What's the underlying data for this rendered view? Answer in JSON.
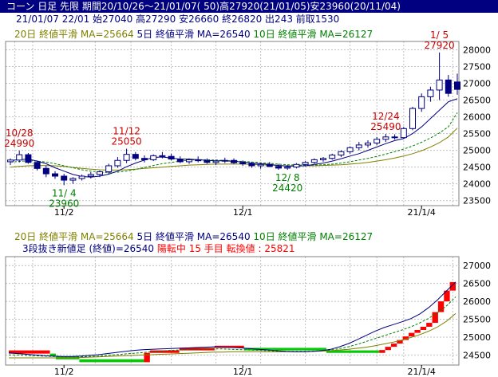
{
  "window": {
    "title": "コーン 日足 先限 期間20/10/26～21/01/07( 50)高27920(21/01/05)安23960(20/11/04)"
  },
  "info": {
    "line": "21/01/07 22/01 始27040 高27290 安26660 終26820 出243 前取1530"
  },
  "colors": {
    "ma20": "#808000",
    "ma5": "#000080",
    "ma10": "#008000",
    "up": "#ff0000",
    "down": "#000080",
    "grid": "#c0c0c0"
  },
  "legend_top": {
    "ma20": "20日 終値平滑 MA=25664",
    "ma5": "5日 終値平滑 MA=26540",
    "ma10": "10日 終値平滑 MA=26127"
  },
  "legend_bottom": {
    "ma20": "20日 終値平滑 MA=25664",
    "ma5": "5日 終値平滑 MA=26540",
    "ma10": "10日 終値平滑 MA=26127",
    "three_line": "3段抜き新値足 (終値)=26540",
    "state": "陽転中",
    "count": "15 手目",
    "reversal": "転換値 : 25821"
  },
  "chart_data": [
    {
      "type": "candlestick",
      "x_tick_labels": [
        "11/2",
        "12/1",
        "21/1/4"
      ],
      "y_tick_labels": [
        23500,
        24000,
        24500,
        25000,
        25500,
        26000,
        26500,
        27000,
        27500,
        28000
      ],
      "ylim": [
        23350,
        28250
      ],
      "annotations": [
        {
          "day": 1,
          "date": "10/28",
          "price": 24990,
          "kind": "high"
        },
        {
          "day": 6,
          "date": "11/ 4",
          "price": 23960,
          "kind": "low"
        },
        {
          "day": 13,
          "date": "11/12",
          "price": 25050,
          "kind": "high"
        },
        {
          "day": 31,
          "date": "12/ 8",
          "price": 24420,
          "kind": "low"
        },
        {
          "day": 42,
          "date": "12/24",
          "price": 25490,
          "kind": "high"
        },
        {
          "day": 48,
          "date": "1/ 5",
          "price": 27920,
          "kind": "high"
        }
      ],
      "candles": [
        [
          24660,
          24760,
          24560,
          24710
        ],
        [
          24710,
          24990,
          24640,
          24870
        ],
        [
          24870,
          24920,
          24600,
          24640
        ],
        [
          24640,
          24700,
          24400,
          24460
        ],
        [
          24460,
          24540,
          24200,
          24300
        ],
        [
          24300,
          24380,
          24150,
          24230
        ],
        [
          24230,
          24300,
          23960,
          24110
        ],
        [
          24110,
          24200,
          24000,
          24160
        ],
        [
          24160,
          24280,
          24100,
          24230
        ],
        [
          24230,
          24350,
          24160,
          24280
        ],
        [
          24280,
          24400,
          24200,
          24360
        ],
        [
          24360,
          24600,
          24300,
          24540
        ],
        [
          24540,
          24800,
          24480,
          24700
        ],
        [
          24700,
          25050,
          24620,
          24880
        ],
        [
          24880,
          24950,
          24700,
          24760
        ],
        [
          24760,
          24850,
          24640,
          24720
        ],
        [
          24720,
          24880,
          24680,
          24840
        ],
        [
          24840,
          24950,
          24760,
          24820
        ],
        [
          24820,
          24900,
          24700,
          24740
        ],
        [
          24740,
          24820,
          24620,
          24660
        ],
        [
          24660,
          24760,
          24600,
          24720
        ],
        [
          24720,
          24820,
          24640,
          24690
        ],
        [
          24690,
          24760,
          24600,
          24640
        ],
        [
          24640,
          24720,
          24560,
          24680
        ],
        [
          24680,
          24780,
          24620,
          24700
        ],
        [
          24700,
          24760,
          24600,
          24630
        ],
        [
          24630,
          24700,
          24540,
          24600
        ],
        [
          24600,
          24660,
          24480,
          24540
        ],
        [
          24540,
          24620,
          24450,
          24580
        ],
        [
          24580,
          24650,
          24500,
          24520
        ],
        [
          24520,
          24600,
          24420,
          24470
        ],
        [
          24470,
          24560,
          24420,
          24500
        ],
        [
          24500,
          24620,
          24460,
          24580
        ],
        [
          24580,
          24680,
          24520,
          24640
        ],
        [
          24640,
          24760,
          24600,
          24720
        ],
        [
          24720,
          24800,
          24660,
          24760
        ],
        [
          24760,
          24900,
          24720,
          24860
        ],
        [
          24860,
          25000,
          24800,
          24960
        ],
        [
          24960,
          25120,
          24900,
          25080
        ],
        [
          25080,
          25250,
          25000,
          25160
        ],
        [
          25160,
          25300,
          25080,
          25220
        ],
        [
          25220,
          25400,
          25150,
          25330
        ],
        [
          25330,
          25490,
          25250,
          25400
        ],
        [
          25400,
          25480,
          25320,
          25380
        ],
        [
          25380,
          25700,
          25350,
          25650
        ],
        [
          25650,
          26300,
          25600,
          26250
        ],
        [
          26250,
          26700,
          26150,
          26600
        ],
        [
          26600,
          26900,
          26450,
          26800
        ],
        [
          26800,
          27920,
          26500,
          27100
        ],
        [
          27100,
          27250,
          26600,
          26700
        ],
        [
          27040,
          27290,
          26660,
          26820
        ]
      ],
      "ma5": [
        24700,
        24720,
        24740,
        24680,
        24600,
        24480,
        24380,
        24280,
        24220,
        24200,
        24230,
        24290,
        24380,
        24510,
        24620,
        24710,
        24790,
        24800,
        24770,
        24740,
        24740,
        24720,
        24700,
        24690,
        24690,
        24670,
        24650,
        24620,
        24600,
        24580,
        24550,
        24530,
        24530,
        24540,
        24580,
        24620,
        24680,
        24750,
        24830,
        24900,
        25000,
        25100,
        25200,
        25290,
        25350,
        25500,
        25700,
        25950,
        26200,
        26450,
        26540
      ],
      "ma10": [
        24650,
        24670,
        24690,
        24680,
        24650,
        24600,
        24540,
        24480,
        24420,
        24380,
        24350,
        24340,
        24350,
        24380,
        24430,
        24490,
        24550,
        24600,
        24640,
        24680,
        24710,
        24720,
        24720,
        24710,
        24700,
        24680,
        24670,
        24650,
        24630,
        24610,
        24590,
        24570,
        24560,
        24560,
        24560,
        24570,
        24590,
        24620,
        24660,
        24710,
        24760,
        24820,
        24890,
        24960,
        25040,
        25130,
        25240,
        25370,
        25520,
        25700,
        26127
      ],
      "ma20": [
        24500,
        24520,
        24540,
        24550,
        24550,
        24540,
        24520,
        24490,
        24460,
        24440,
        24420,
        24410,
        24410,
        24420,
        24440,
        24460,
        24480,
        24500,
        24520,
        24540,
        24560,
        24570,
        24580,
        24590,
        24590,
        24590,
        24590,
        24580,
        24570,
        24560,
        24550,
        24540,
        24540,
        24540,
        24540,
        24550,
        24560,
        24570,
        24590,
        24610,
        24640,
        24680,
        24720,
        24770,
        24830,
        24900,
        24990,
        25100,
        25230,
        25400,
        25664
      ]
    },
    {
      "type": "three_line_break",
      "x_tick_labels": [
        "11/2",
        "12/1",
        "21/1/4"
      ],
      "y_tick_labels": [
        24500,
        25000,
        25500,
        26000,
        26500,
        27000
      ],
      "ylim": [
        24220,
        27250
      ],
      "bricks": [
        {
          "i0": 0,
          "i1": 7,
          "lo": 24540,
          "hi": 24630,
          "color": "up"
        },
        {
          "i0": 7,
          "i1": 8,
          "lo": 24460,
          "hi": 24540,
          "color": "down"
        },
        {
          "i0": 8,
          "i1": 12,
          "lo": 24380,
          "hi": 24460,
          "color": "down"
        },
        {
          "i0": 12,
          "i1": 23,
          "lo": 24300,
          "hi": 24380,
          "color": "down"
        },
        {
          "i0": 23,
          "i1": 24,
          "lo": 24300,
          "hi": 24560,
          "color": "up"
        },
        {
          "i0": 24,
          "i1": 29,
          "lo": 24560,
          "hi": 24630,
          "color": "up"
        },
        {
          "i0": 29,
          "i1": 35,
          "lo": 24630,
          "hi": 24700,
          "color": "up"
        },
        {
          "i0": 35,
          "i1": 40,
          "lo": 24700,
          "hi": 24760,
          "color": "up"
        },
        {
          "i0": 40,
          "i1": 54,
          "lo": 24630,
          "hi": 24700,
          "color": "down"
        },
        {
          "i0": 54,
          "i1": 63,
          "lo": 24560,
          "hi": 24630,
          "color": "down"
        },
        {
          "i0": 63,
          "i1": 64,
          "lo": 24560,
          "hi": 24640,
          "color": "up"
        },
        {
          "i0": 64,
          "i1": 65,
          "lo": 24640,
          "hi": 24730,
          "color": "up"
        },
        {
          "i0": 65,
          "i1": 66,
          "lo": 24730,
          "hi": 24820,
          "color": "up"
        },
        {
          "i0": 66,
          "i1": 67,
          "lo": 24820,
          "hi": 24920,
          "color": "up"
        },
        {
          "i0": 67,
          "i1": 68,
          "lo": 24920,
          "hi": 25020,
          "color": "up"
        },
        {
          "i0": 68,
          "i1": 69,
          "lo": 25020,
          "hi": 25120,
          "color": "up"
        },
        {
          "i0": 69,
          "i1": 70,
          "lo": 25120,
          "hi": 25200,
          "color": "up"
        },
        {
          "i0": 70,
          "i1": 71,
          "lo": 25200,
          "hi": 25290,
          "color": "up"
        },
        {
          "i0": 71,
          "i1": 72,
          "lo": 25290,
          "hi": 25400,
          "color": "up"
        },
        {
          "i0": 72,
          "i1": 73,
          "lo": 25400,
          "hi": 25700,
          "color": "up"
        },
        {
          "i0": 73,
          "i1": 74,
          "lo": 25700,
          "hi": 26000,
          "color": "up"
        },
        {
          "i0": 74,
          "i1": 75,
          "lo": 26000,
          "hi": 26300,
          "color": "up"
        },
        {
          "i0": 75,
          "i1": 76,
          "lo": 26300,
          "hi": 26540,
          "color": "up"
        }
      ],
      "ma5": [
        24560,
        24540,
        24520,
        24500,
        24480,
        24470,
        24460,
        24460,
        24470,
        24490,
        24510,
        24540,
        24570,
        24600,
        24630,
        24650,
        24660,
        24670,
        24680,
        24690,
        24700,
        24710,
        24720,
        24730,
        24720,
        24710,
        24700,
        24680,
        24660,
        24640,
        24620,
        24600,
        24590,
        24590,
        24600,
        24620,
        24660,
        24730,
        24820,
        24930,
        25050,
        25170,
        25270,
        25350,
        25430,
        25520,
        25650,
        25830,
        26050,
        26300,
        26540
      ],
      "ma10": [
        24500,
        24500,
        24490,
        24480,
        24470,
        24460,
        24450,
        24450,
        24450,
        24460,
        24470,
        24490,
        24510,
        24530,
        24550,
        24570,
        24590,
        24610,
        24630,
        24640,
        24650,
        24660,
        24670,
        24670,
        24670,
        24660,
        24650,
        24640,
        24630,
        24620,
        24610,
        24600,
        24600,
        24600,
        24610,
        24620,
        24640,
        24680,
        24730,
        24800,
        24880,
        24960,
        25040,
        25120,
        25200,
        25290,
        25400,
        25530,
        25690,
        25880,
        26127
      ],
      "ma20": [
        24420,
        24420,
        24420,
        24420,
        24420,
        24420,
        24420,
        24420,
        24430,
        24440,
        24450,
        24460,
        24470,
        24480,
        24490,
        24500,
        24510,
        24520,
        24530,
        24540,
        24550,
        24560,
        24570,
        24580,
        24580,
        24590,
        24590,
        24590,
        24590,
        24590,
        24590,
        24590,
        24590,
        24590,
        24600,
        24610,
        24620,
        24640,
        24660,
        24690,
        24720,
        24760,
        24810,
        24860,
        24920,
        24990,
        25070,
        25170,
        25290,
        25450,
        25664
      ]
    }
  ]
}
